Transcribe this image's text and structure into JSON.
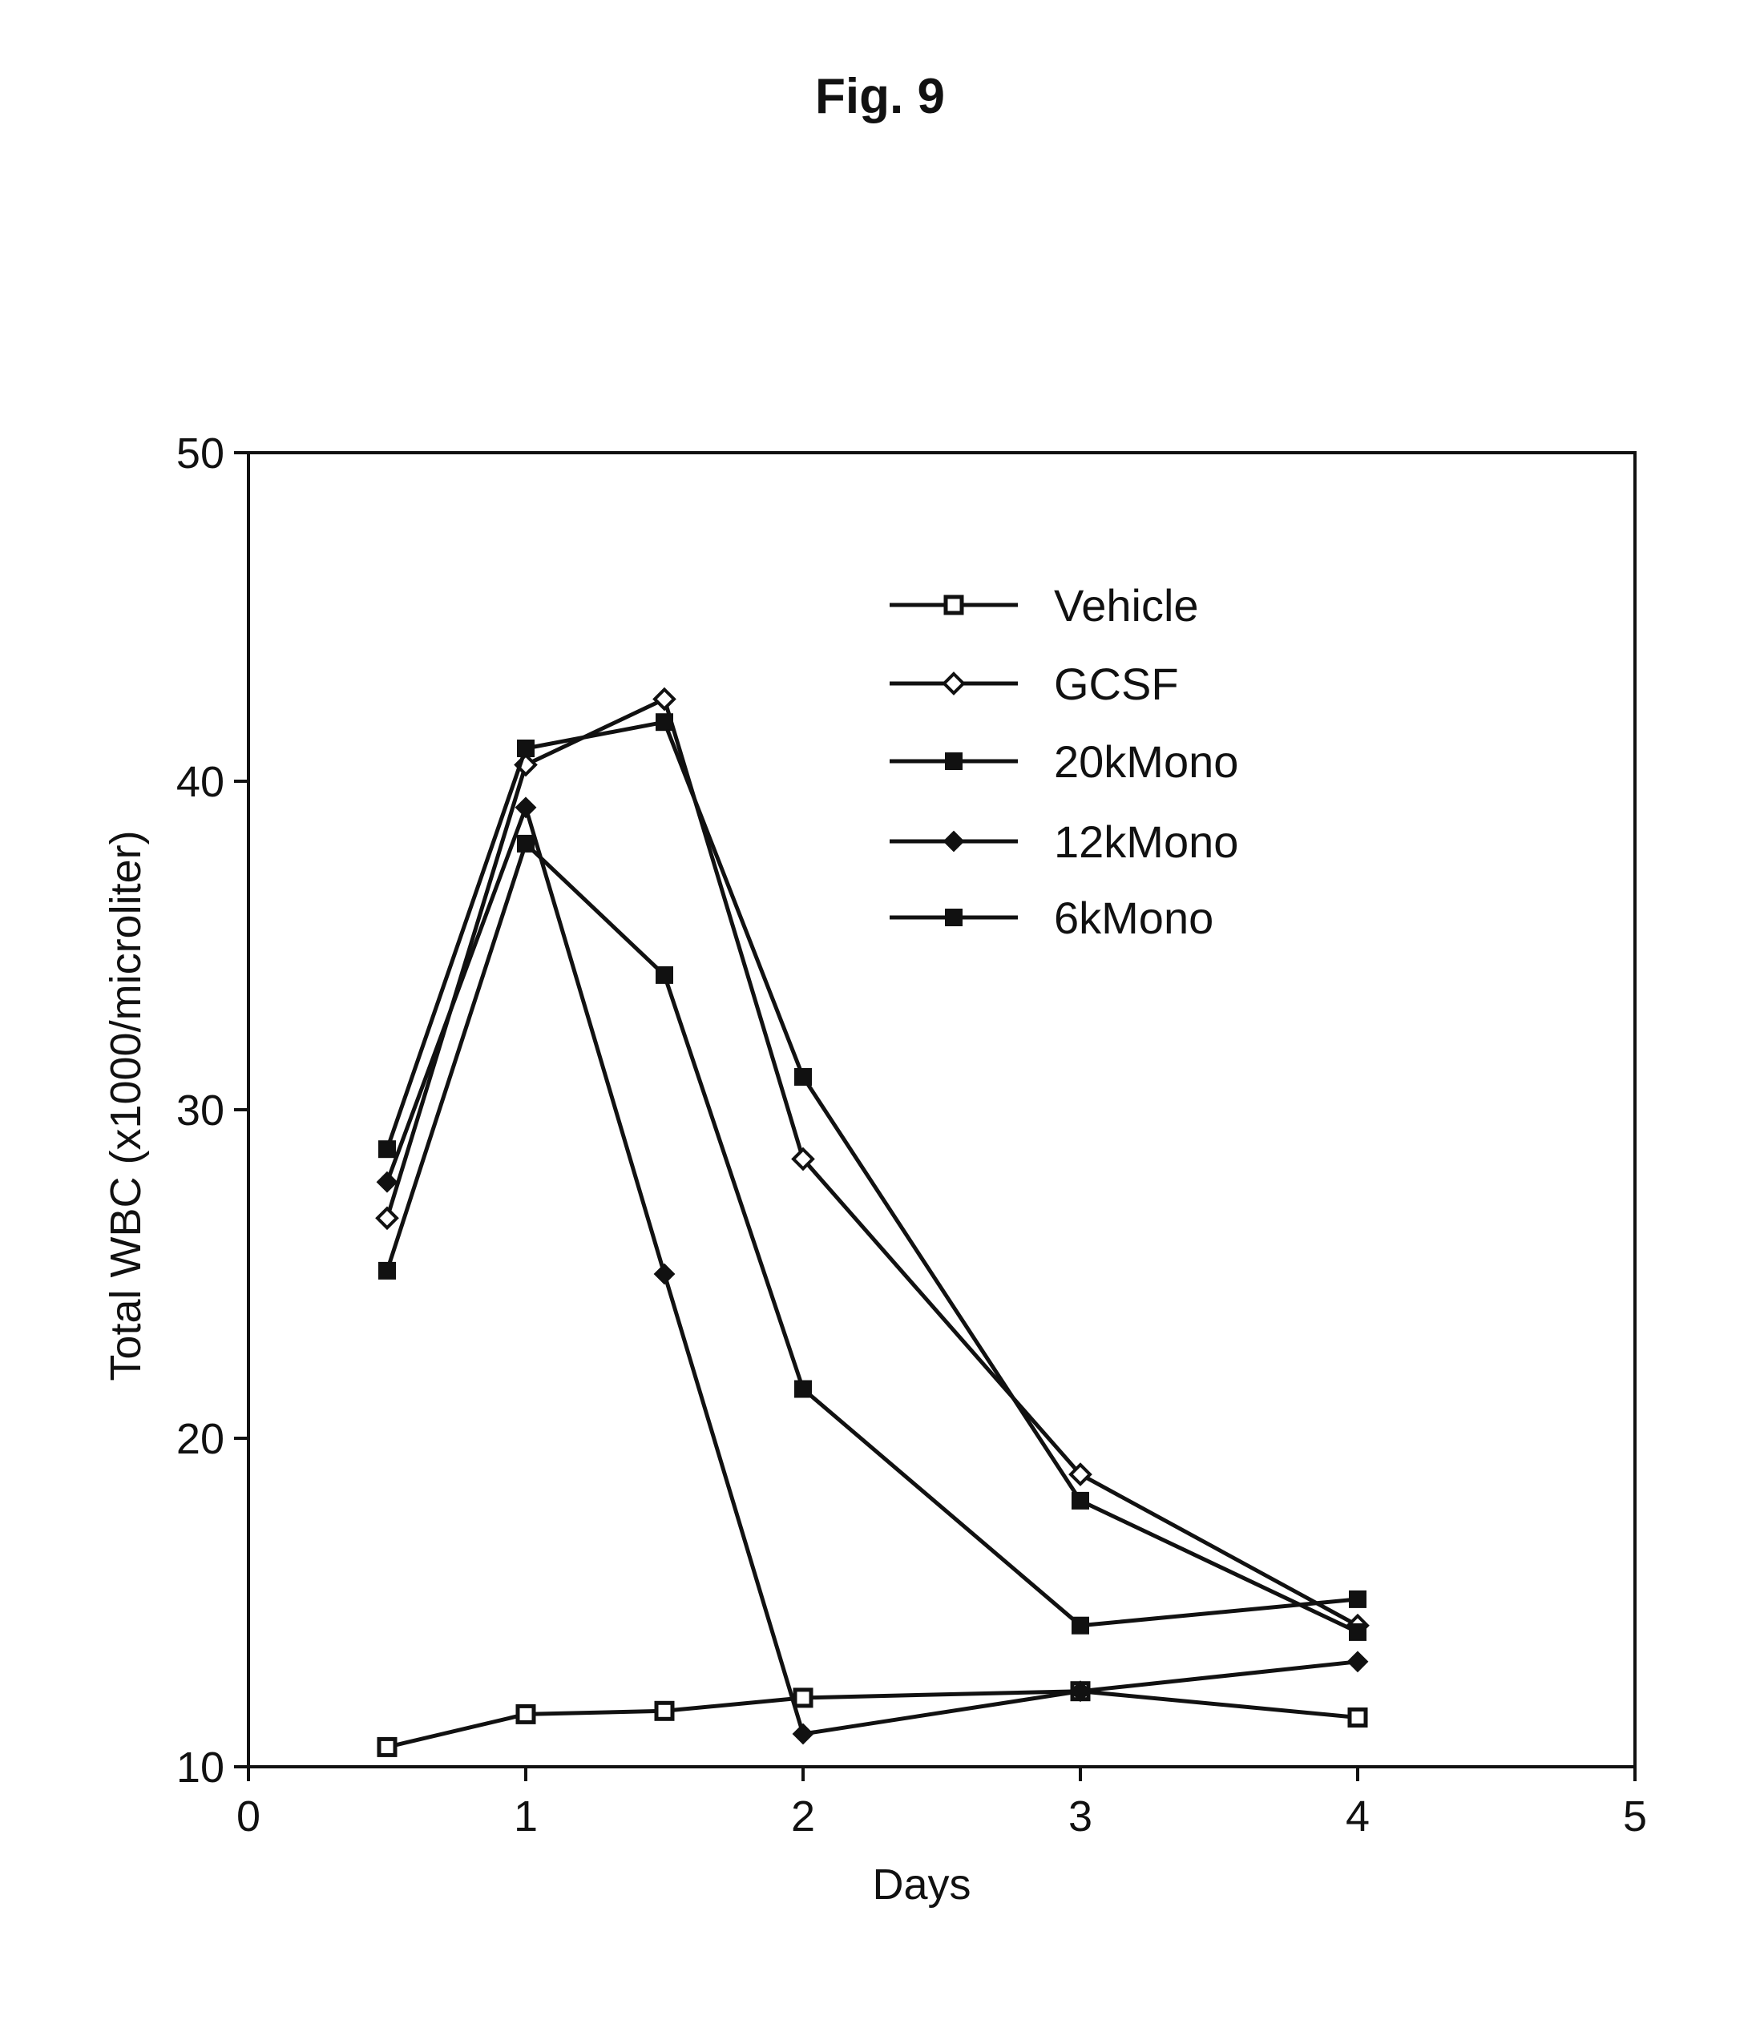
{
  "figure_title": "Fig. 9",
  "chart_data": {
    "type": "line",
    "title": "",
    "xlabel": "Days",
    "ylabel": "Total WBC (x1000/microliter)",
    "xlim": [
      0,
      5
    ],
    "ylim": [
      10,
      50
    ],
    "x_ticks": [
      0,
      1,
      2,
      3,
      4,
      5
    ],
    "y_ticks": [
      10,
      20,
      30,
      40,
      50
    ],
    "grid": false,
    "legend_position": "top-right",
    "series": [
      {
        "name": "Vehicle",
        "marker": "open-square",
        "x": [
          0.5,
          1,
          1.5,
          2,
          3,
          4
        ],
        "y": [
          10.6,
          11.6,
          11.7,
          12.1,
          12.3,
          11.5
        ]
      },
      {
        "name": "GCSF",
        "marker": "open-diamond",
        "x": [
          0.5,
          1,
          1.5,
          2,
          3,
          4
        ],
        "y": [
          26.7,
          40.5,
          42.5,
          28.5,
          18.9,
          14.3
        ]
      },
      {
        "name": "20kMono",
        "marker": "filled-square",
        "x": [
          0.5,
          1,
          1.5,
          2,
          3,
          4
        ],
        "y": [
          28.8,
          41.0,
          41.8,
          31.0,
          18.1,
          14.1
        ]
      },
      {
        "name": "12kMono",
        "marker": "filled-diamond",
        "x": [
          0.5,
          1,
          1.5,
          2,
          3,
          4
        ],
        "y": [
          27.8,
          39.2,
          25.0,
          11.0,
          12.3,
          13.2
        ]
      },
      {
        "name": "6kMono",
        "marker": "filled-square",
        "x": [
          0.5,
          1,
          1.5,
          2,
          3,
          4
        ],
        "y": [
          25.1,
          38.1,
          34.1,
          21.5,
          14.3,
          15.1
        ]
      }
    ]
  }
}
